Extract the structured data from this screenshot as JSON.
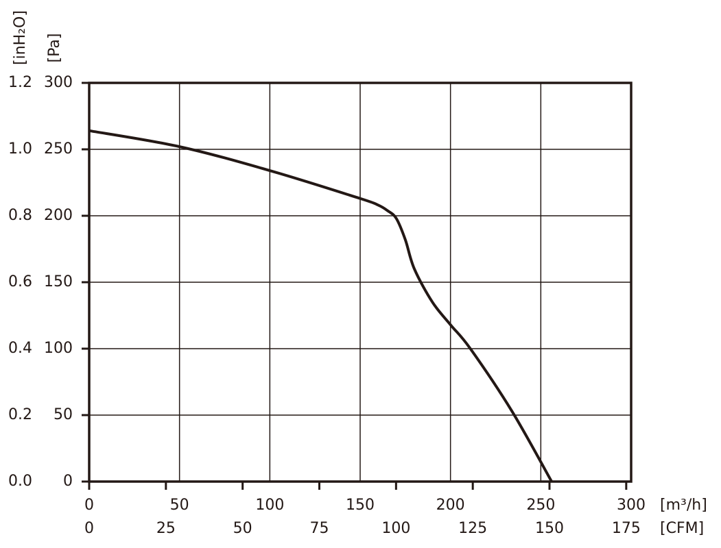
{
  "chart_data": {
    "type": "line",
    "x_unit_label": "[m³/h]",
    "x2_unit_label": "[CFM]",
    "y_unit_label": "[Pa]",
    "y2_unit_label": "[inH₂O]",
    "x": [
      0,
      50,
      100,
      150,
      160,
      165,
      170,
      175,
      180,
      190,
      200,
      211,
      234,
      256
    ],
    "series": [
      {
        "color": "#231815",
        "values": [
          264,
          252,
          234,
          213,
          208,
          204,
          198,
          182,
          160,
          135,
          118,
          100,
          53,
          0
        ]
      }
    ],
    "xlim": [
      0,
      300
    ],
    "xticks": [
      0,
      50,
      100,
      150,
      200,
      250,
      300
    ],
    "x2lim": [
      0,
      176.6
    ],
    "x2ticks": [
      0,
      25,
      50,
      75,
      100,
      125,
      150,
      175
    ],
    "ylim": [
      0,
      300
    ],
    "yticks": [
      0,
      50,
      100,
      150,
      200,
      250,
      300
    ],
    "y2lim": [
      0,
      1.2
    ],
    "y2ticks": [
      {
        "value": 0,
        "label": "0.0"
      },
      0.2,
      0.4,
      0.6,
      0.8,
      {
        "value": 1,
        "label": "1.0"
      },
      1.2
    ],
    "grid": true
  }
}
